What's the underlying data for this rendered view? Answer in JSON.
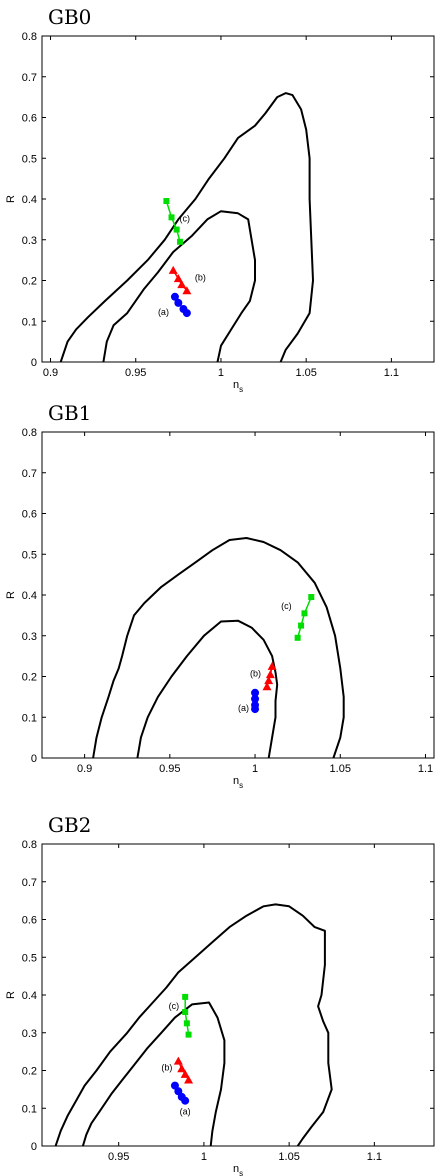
{
  "chart_data": [
    {
      "type": "line",
      "title": "GB0",
      "xlabel": "n",
      "xlabel_sub": "s",
      "ylabel": "R",
      "xlim": [
        0.895,
        1.125
      ],
      "ylim": [
        0,
        0.8
      ],
      "xticks": [
        0.9,
        0.95,
        1,
        1.05,
        1.1
      ],
      "yticks": [
        0,
        0.1,
        0.2,
        0.3,
        0.4,
        0.5,
        0.6,
        0.7,
        0.8
      ],
      "contours": [
        [
          [
            0.906,
            0
          ],
          [
            0.91,
            0.05
          ],
          [
            0.915,
            0.08
          ],
          [
            0.922,
            0.11
          ],
          [
            0.932,
            0.15
          ],
          [
            0.945,
            0.2
          ],
          [
            0.957,
            0.25
          ],
          [
            0.967,
            0.3
          ],
          [
            0.975,
            0.35
          ],
          [
            0.985,
            0.4
          ],
          [
            0.993,
            0.45
          ],
          [
            1.002,
            0.5
          ],
          [
            1.01,
            0.55
          ],
          [
            1.02,
            0.58
          ],
          [
            1.026,
            0.61
          ],
          [
            1.033,
            0.65
          ],
          [
            1.038,
            0.66
          ],
          [
            1.042,
            0.655
          ],
          [
            1.047,
            0.62
          ],
          [
            1.05,
            0.57
          ],
          [
            1.052,
            0.5
          ],
          [
            1.052,
            0.4
          ],
          [
            1.053,
            0.3
          ],
          [
            1.054,
            0.2
          ],
          [
            1.052,
            0.12
          ],
          [
            1.045,
            0.07
          ],
          [
            1.038,
            0.03
          ],
          [
            1.035,
            0
          ]
        ],
        [
          [
            0.931,
            0
          ],
          [
            0.933,
            0.05
          ],
          [
            0.937,
            0.09
          ],
          [
            0.945,
            0.12
          ],
          [
            0.955,
            0.18
          ],
          [
            0.963,
            0.22
          ],
          [
            0.972,
            0.27
          ],
          [
            0.983,
            0.31
          ],
          [
            0.992,
            0.35
          ],
          [
            1.0,
            0.37
          ],
          [
            1.01,
            0.365
          ],
          [
            1.016,
            0.35
          ],
          [
            1.018,
            0.3
          ],
          [
            1.02,
            0.25
          ],
          [
            1.02,
            0.2
          ],
          [
            1.017,
            0.15
          ],
          [
            1.012,
            0.12
          ],
          [
            1.006,
            0.08
          ],
          [
            1.0,
            0.04
          ],
          [
            0.998,
            0
          ]
        ]
      ],
      "series": [
        {
          "label": "(a)",
          "marker": "circle",
          "color": "#0000ff",
          "x": [
            0.973,
            0.975,
            0.978,
            0.98
          ],
          "y": [
            0.16,
            0.145,
            0.13,
            0.12
          ]
        },
        {
          "label": "(b)",
          "marker": "triangle",
          "color": "#ff0000",
          "x": [
            0.972,
            0.975,
            0.977,
            0.98
          ],
          "y": [
            0.225,
            0.205,
            0.19,
            0.175
          ]
        },
        {
          "label": "(c)",
          "marker": "square",
          "color": "#00dd00",
          "x": [
            0.968,
            0.971,
            0.974,
            0.976
          ],
          "y": [
            0.395,
            0.355,
            0.325,
            0.295
          ]
        }
      ]
    },
    {
      "type": "line",
      "title": "GB1",
      "xlabel": "n",
      "xlabel_sub": "s",
      "ylabel": "R",
      "xlim": [
        0.875,
        1.105
      ],
      "ylim": [
        0,
        0.8
      ],
      "xticks": [
        0.9,
        0.95,
        1,
        1.05,
        1.1
      ],
      "yticks": [
        0,
        0.1,
        0.2,
        0.3,
        0.4,
        0.5,
        0.6,
        0.7,
        0.8
      ],
      "contours": [
        [
          [
            0.905,
            0
          ],
          [
            0.907,
            0.05
          ],
          [
            0.91,
            0.1
          ],
          [
            0.914,
            0.15
          ],
          [
            0.917,
            0.19
          ],
          [
            0.92,
            0.22
          ],
          [
            0.922,
            0.25
          ],
          [
            0.925,
            0.3
          ],
          [
            0.929,
            0.35
          ],
          [
            0.935,
            0.38
          ],
          [
            0.945,
            0.42
          ],
          [
            0.955,
            0.45
          ],
          [
            0.965,
            0.48
          ],
          [
            0.975,
            0.51
          ],
          [
            0.985,
            0.535
          ],
          [
            0.995,
            0.54
          ],
          [
            1.005,
            0.53
          ],
          [
            1.015,
            0.51
          ],
          [
            1.025,
            0.48
          ],
          [
            1.035,
            0.43
          ],
          [
            1.042,
            0.37
          ],
          [
            1.047,
            0.3
          ],
          [
            1.05,
            0.22
          ],
          [
            1.052,
            0.15
          ],
          [
            1.052,
            0.1
          ],
          [
            1.05,
            0.05
          ],
          [
            1.046,
            0
          ]
        ],
        [
          [
            0.931,
            0
          ],
          [
            0.933,
            0.05
          ],
          [
            0.937,
            0.1
          ],
          [
            0.943,
            0.15
          ],
          [
            0.951,
            0.2
          ],
          [
            0.96,
            0.25
          ],
          [
            0.97,
            0.3
          ],
          [
            0.98,
            0.335
          ],
          [
            0.99,
            0.337
          ],
          [
            0.998,
            0.32
          ],
          [
            1.005,
            0.29
          ],
          [
            1.01,
            0.25
          ],
          [
            1.012,
            0.21
          ],
          [
            1.013,
            0.18
          ],
          [
            1.012,
            0.14
          ],
          [
            1.012,
            0.1
          ],
          [
            1.01,
            0.05
          ],
          [
            1.008,
            0
          ]
        ]
      ],
      "series": [
        {
          "label": "(a)",
          "marker": "circle",
          "color": "#0000ff",
          "x": [
            1.0,
            1.0,
            1.0,
            1.0
          ],
          "y": [
            0.16,
            0.145,
            0.13,
            0.12
          ]
        },
        {
          "label": "(b)",
          "marker": "triangle",
          "color": "#ff0000",
          "x": [
            1.01,
            1.009,
            1.008,
            1.007
          ],
          "y": [
            0.225,
            0.205,
            0.19,
            0.175
          ]
        },
        {
          "label": "(c)",
          "marker": "square",
          "color": "#00dd00",
          "x": [
            1.033,
            1.029,
            1.027,
            1.025
          ],
          "y": [
            0.395,
            0.355,
            0.325,
            0.295
          ]
        }
      ]
    },
    {
      "type": "line",
      "title": "GB2",
      "xlabel": "n",
      "xlabel_sub": "s",
      "ylabel": "R",
      "xlim": [
        0.905,
        1.135
      ],
      "ylim": [
        0,
        0.8
      ],
      "xticks": [
        0.95,
        1,
        1.05,
        1.1
      ],
      "yticks": [
        0,
        0.1,
        0.2,
        0.3,
        0.4,
        0.5,
        0.6,
        0.7,
        0.8
      ],
      "contours": [
        [
          [
            0.913,
            0
          ],
          [
            0.916,
            0.04
          ],
          [
            0.92,
            0.08
          ],
          [
            0.925,
            0.12
          ],
          [
            0.93,
            0.16
          ],
          [
            0.937,
            0.2
          ],
          [
            0.945,
            0.25
          ],
          [
            0.955,
            0.3
          ],
          [
            0.962,
            0.34
          ],
          [
            0.97,
            0.38
          ],
          [
            0.978,
            0.42
          ],
          [
            0.985,
            0.46
          ],
          [
            0.995,
            0.5
          ],
          [
            1.005,
            0.54
          ],
          [
            1.015,
            0.58
          ],
          [
            1.025,
            0.61
          ],
          [
            1.035,
            0.635
          ],
          [
            1.042,
            0.64
          ],
          [
            1.05,
            0.635
          ],
          [
            1.058,
            0.61
          ],
          [
            1.065,
            0.58
          ],
          [
            1.071,
            0.57
          ],
          [
            1.071,
            0.48
          ],
          [
            1.069,
            0.4
          ],
          [
            1.067,
            0.37
          ],
          [
            1.07,
            0.33
          ],
          [
            1.073,
            0.3
          ],
          [
            1.073,
            0.22
          ],
          [
            1.075,
            0.15
          ],
          [
            1.07,
            0.09
          ],
          [
            1.063,
            0.05
          ],
          [
            1.058,
            0.02
          ],
          [
            1.055,
            0
          ]
        ],
        [
          [
            0.929,
            0
          ],
          [
            0.931,
            0.03
          ],
          [
            0.934,
            0.06
          ],
          [
            0.94,
            0.1
          ],
          [
            0.946,
            0.14
          ],
          [
            0.953,
            0.18
          ],
          [
            0.96,
            0.22
          ],
          [
            0.967,
            0.26
          ],
          [
            0.975,
            0.3
          ],
          [
            0.983,
            0.34
          ],
          [
            0.993,
            0.375
          ],
          [
            1.003,
            0.38
          ],
          [
            1.008,
            0.34
          ],
          [
            1.012,
            0.28
          ],
          [
            1.012,
            0.22
          ],
          [
            1.01,
            0.15
          ],
          [
            1.007,
            0.09
          ],
          [
            1.005,
            0.04
          ],
          [
            1.004,
            0
          ]
        ]
      ],
      "series": [
        {
          "label": "(a)",
          "marker": "circle",
          "color": "#0000ff",
          "x": [
            0.983,
            0.985,
            0.987,
            0.989
          ],
          "y": [
            0.16,
            0.145,
            0.13,
            0.12
          ]
        },
        {
          "label": "(b)",
          "marker": "triangle",
          "color": "#ff0000",
          "x": [
            0.985,
            0.987,
            0.989,
            0.991
          ],
          "y": [
            0.225,
            0.205,
            0.19,
            0.175
          ]
        },
        {
          "label": "(c)",
          "marker": "square",
          "color": "#00dd00",
          "x": [
            0.989,
            0.989,
            0.99,
            0.991
          ],
          "y": [
            0.395,
            0.355,
            0.325,
            0.295
          ]
        }
      ]
    }
  ]
}
